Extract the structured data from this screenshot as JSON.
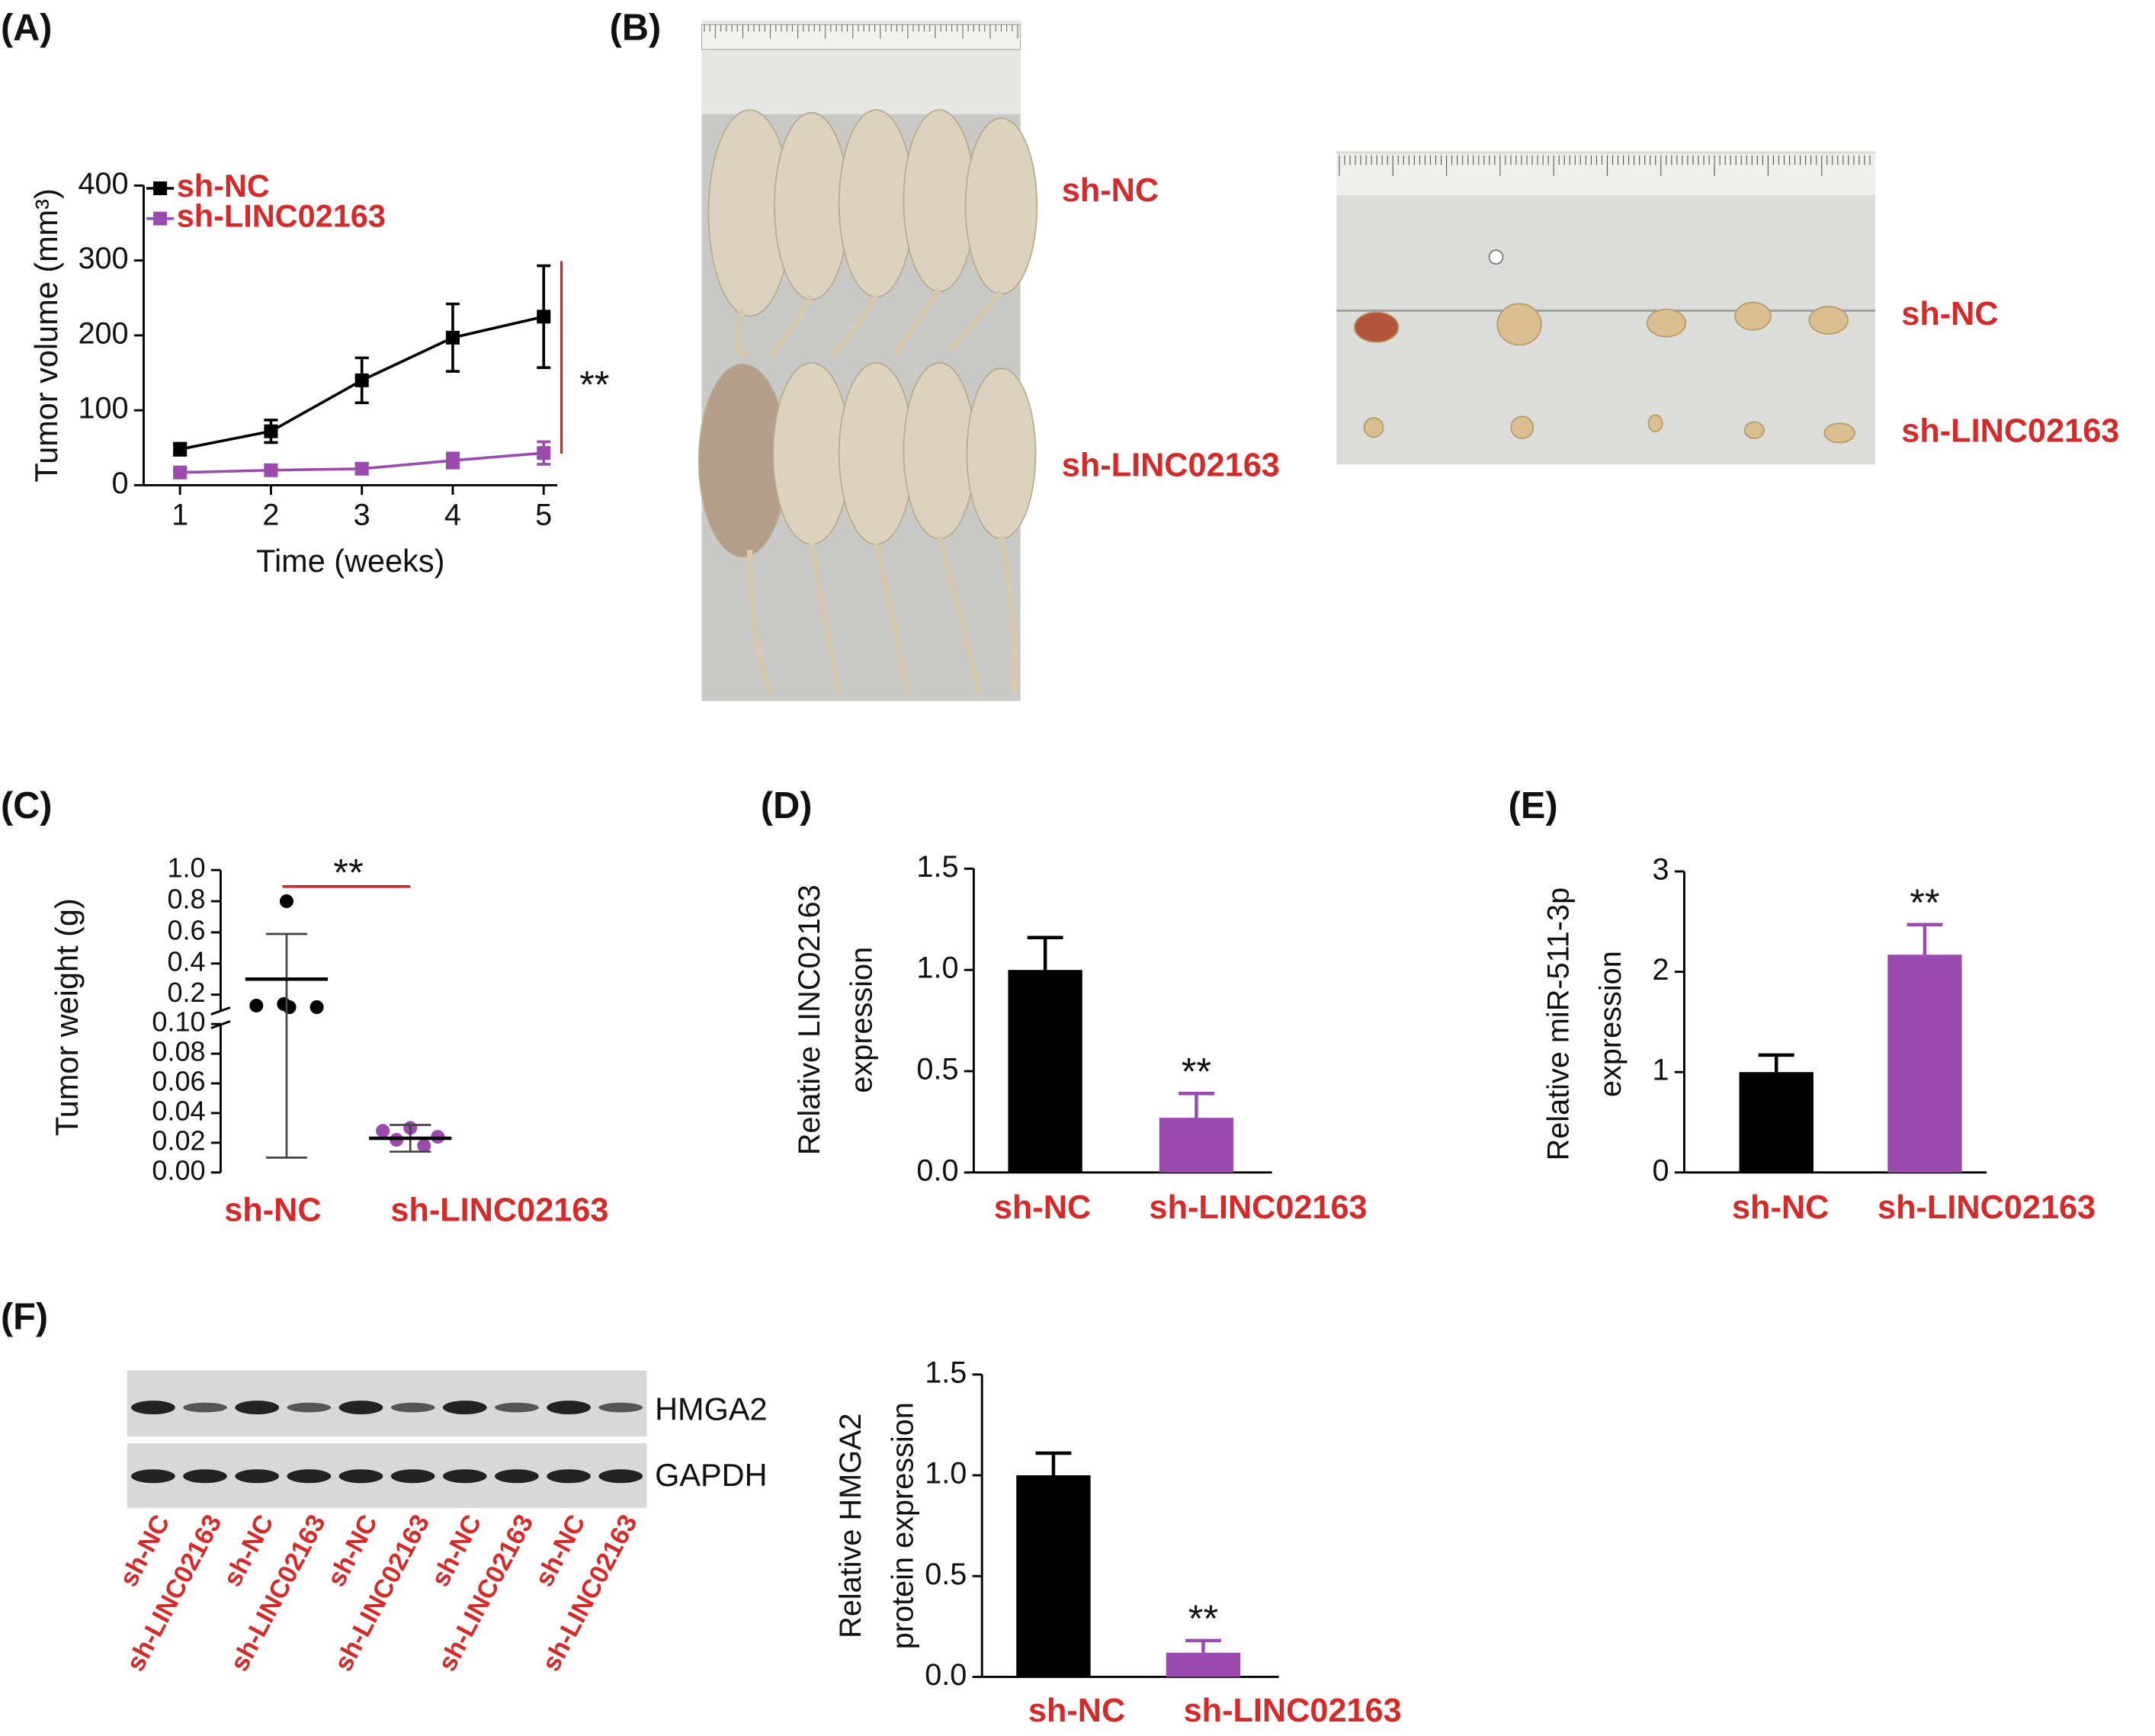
{
  "panel_labels": [
    "(A)",
    "(B)",
    "(C)",
    "(D)",
    "(E)",
    "(F)"
  ],
  "photos": {
    "mice_labels": [
      "sh-NC",
      "sh-LINC02163"
    ],
    "tumor_labels": [
      "sh-NC",
      "sh-LINC02163"
    ]
  },
  "blot": {
    "bands": [
      "HMGA2",
      "GAPDH"
    ],
    "lanes": [
      "sh-NC",
      "sh-LINC02163",
      "sh-NC",
      "sh-LINC02163",
      "sh-NC",
      "sh-LINC02163",
      "sh-NC",
      "sh-LINC02163",
      "sh-NC",
      "sh-LINC02163"
    ]
  },
  "chart_data": [
    {
      "type": "line",
      "ylabel": "Tumor volume (mm³)",
      "xlabel": "Time (weeks)",
      "x": [
        1,
        2,
        3,
        4,
        5
      ],
      "xlim": [
        0.6,
        5.15
      ],
      "xticks": [
        1,
        2,
        3,
        4,
        5
      ],
      "ylim": [
        0,
        400
      ],
      "yticks": [
        0,
        100,
        200,
        300,
        400
      ],
      "series": [
        {
          "name": "sh-NC",
          "color": "#000000",
          "values": [
            48,
            72,
            140,
            197,
            225
          ],
          "errors": [
            8,
            15,
            30,
            45,
            68
          ]
        },
        {
          "name": "sh-LINC02163",
          "color": "#9b4aad",
          "values": [
            17,
            20,
            22,
            33,
            43
          ],
          "errors": [
            5,
            6,
            7,
            10,
            15
          ]
        }
      ],
      "annotation": "**",
      "legend": "upper left"
    },
    {
      "type": "dot",
      "ylabel": "Tumor weight (g)",
      "categories": [
        "sh-NC",
        "sh-LINC02163"
      ],
      "colors": [
        "#000000",
        "#9b4aad"
      ],
      "values": [
        [
          0.8,
          0.13,
          0.14,
          0.12,
          0.12
        ],
        [
          0.028,
          0.022,
          0.03,
          0.018,
          0.024
        ]
      ],
      "means": [
        0.3,
        0.023
      ],
      "errors": [
        0.29,
        0.009
      ],
      "ylim": [
        0,
        0.1
      ],
      "yticks": [
        {
          "value": 0,
          "label": "0.00"
        },
        {
          "value": 0.02,
          "label": "0.02"
        },
        {
          "value": 0.04,
          "label": "0.04"
        },
        {
          "value": 0.06,
          "label": "0.06"
        },
        {
          "value": 0.08,
          "label": "0.08"
        },
        {
          "value": 0.1,
          "label": "0.10"
        }
      ],
      "ylim_upper": [
        0.1,
        1
      ],
      "yticks_upper": [
        0.2,
        0.4,
        0.6,
        0.8,
        {
          "value": 1,
          "label": "1.0"
        }
      ],
      "annotation": "**"
    },
    {
      "type": "bar",
      "ylabel": [
        "Relative LINC02163",
        "expression"
      ],
      "categories": [
        "sh-NC",
        "sh-LINC02163"
      ],
      "colors": [
        "#000000",
        "#9b4aad"
      ],
      "values": [
        1.0,
        0.27
      ],
      "errors": [
        0.16,
        0.12
      ],
      "ylim": [
        0,
        1.5
      ],
      "yticks": [
        {
          "value": 0,
          "label": "0.0"
        },
        {
          "value": 0.5,
          "label": "0.5"
        },
        {
          "value": 1,
          "label": "1.0"
        },
        {
          "value": 1.5,
          "label": "1.5"
        }
      ],
      "annotation": "**"
    },
    {
      "type": "bar",
      "ylabel": [
        "Relative miR-511-3p",
        "expression"
      ],
      "categories": [
        "sh-NC",
        "sh-LINC02163"
      ],
      "colors": [
        "#000000",
        "#9b4aad"
      ],
      "values": [
        1.0,
        2.17
      ],
      "errors": [
        0.17,
        0.3
      ],
      "ylim": [
        0,
        3
      ],
      "yticks": [
        0,
        1,
        2,
        3
      ],
      "annotation": "**"
    },
    {
      "type": "bar",
      "ylabel": [
        "Relative HMGA2",
        "protein expression"
      ],
      "categories": [
        "sh-NC",
        "sh-LINC02163"
      ],
      "colors": [
        "#000000",
        "#9b4aad"
      ],
      "values": [
        1.0,
        0.12
      ],
      "errors": [
        0.11,
        0.06
      ],
      "ylim": [
        0,
        1.5
      ],
      "yticks": [
        {
          "value": 0,
          "label": "0.0"
        },
        {
          "value": 0.5,
          "label": "0.5"
        },
        {
          "value": 1,
          "label": "1.0"
        },
        {
          "value": 1.5,
          "label": "1.5"
        }
      ],
      "annotation": "**"
    }
  ]
}
